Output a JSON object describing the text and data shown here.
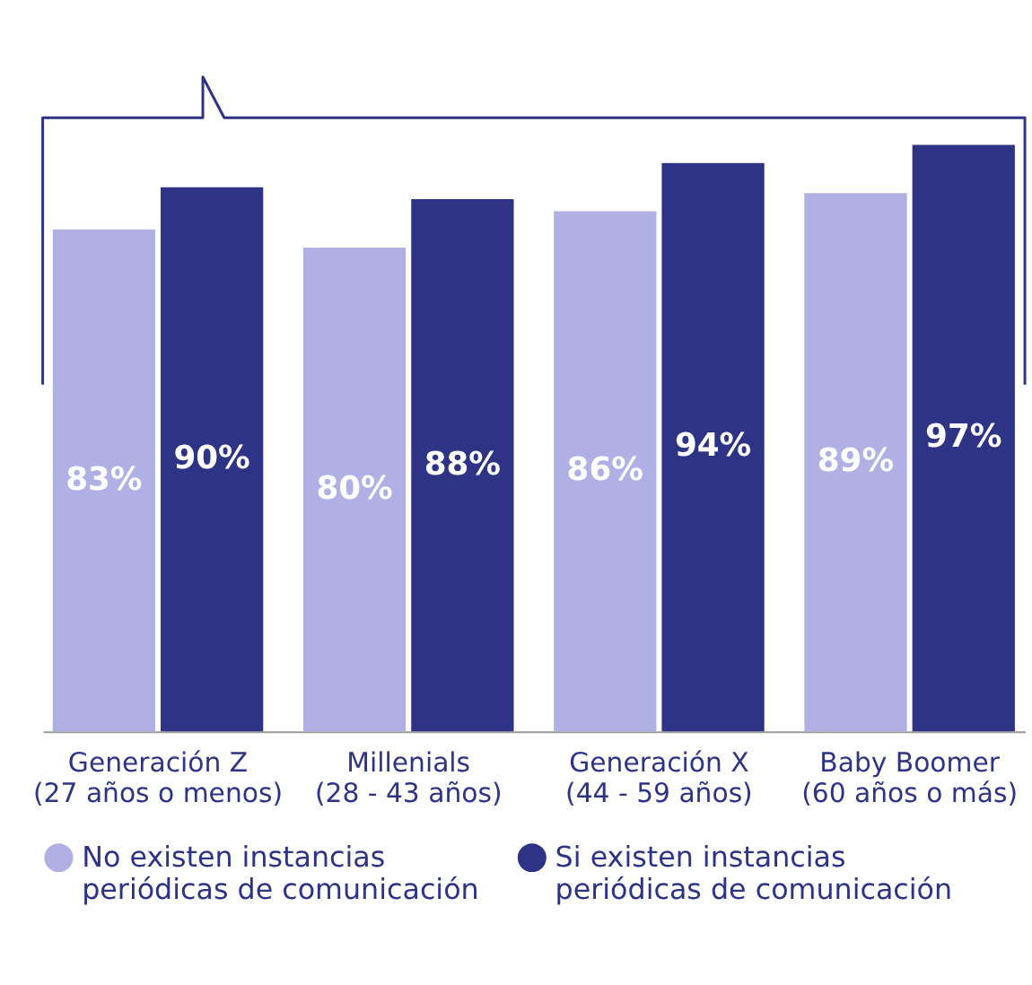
{
  "chart_data": {
    "type": "bar",
    "categories": [
      "Generación Z (27 años o menos)",
      "Millenials (28 - 43 años)",
      "Generación X (44 - 59 años)",
      "Baby Boomer (60 años o más)"
    ],
    "series": [
      {
        "name": "No existen instancias periódicas de comunicación",
        "color": "#b0b0e4",
        "values": [
          83,
          80,
          86,
          89
        ],
        "value_labels": [
          "83%",
          "80%",
          "86%",
          "89%"
        ]
      },
      {
        "name": "Si existen instancias periódicas de comunicación",
        "color": "#2e3386",
        "values": [
          90,
          88,
          94,
          97
        ],
        "value_labels": [
          "90%",
          "88%",
          "94%",
          "97%"
        ]
      }
    ],
    "legend": "bottom",
    "grid": false
  }
}
